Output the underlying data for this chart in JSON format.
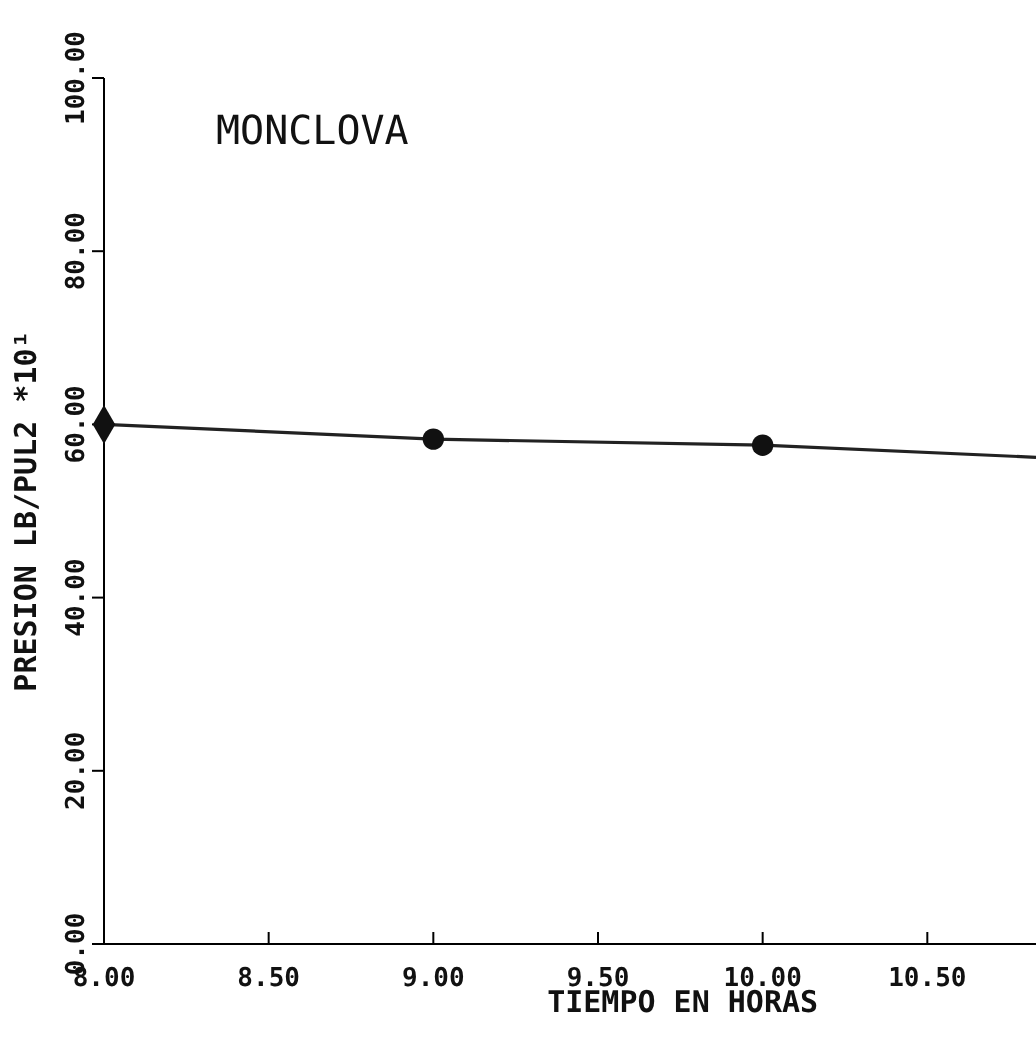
{
  "chart_data": {
    "type": "scatter",
    "title": "MONCLOVA",
    "xlabel": "TIEMPO EN HORAS",
    "ylabel": "PRESION LB/PUL2 *10¹",
    "xlim": [
      8,
      10.83
    ],
    "xticks": [
      {
        "value": 8,
        "label": "8.00"
      },
      {
        "value": 8.5,
        "label": "8.50"
      },
      {
        "value": 9,
        "label": "9.00"
      },
      {
        "value": 9.5,
        "label": "9.50"
      },
      {
        "value": 10,
        "label": "10.00"
      },
      {
        "value": 10.5,
        "label": "10.50"
      }
    ],
    "ylim": [
      0,
      100
    ],
    "yticks": [
      {
        "value": 0,
        "label": "0.00"
      },
      {
        "value": 20,
        "label": "20.00"
      },
      {
        "value": 40,
        "label": "40.00"
      },
      {
        "value": 60,
        "label": "60.00"
      },
      {
        "value": 80,
        "label": "80.00"
      },
      {
        "value": 100,
        "label": "100.00"
      }
    ],
    "series": [
      {
        "type": "line",
        "color": "#222222",
        "x": [
          8,
          9,
          10,
          10.83
        ],
        "values": [
          60,
          58.3,
          57.6,
          56.2
        ],
        "marker": "none"
      },
      {
        "color": "#111111",
        "x": [
          8
        ],
        "values": [
          60
        ],
        "marker": "diamond"
      },
      {
        "color": "#111111",
        "x": [
          9,
          10
        ],
        "values": [
          58.3,
          57.6
        ],
        "marker": "circle"
      }
    ],
    "grid": false
  }
}
